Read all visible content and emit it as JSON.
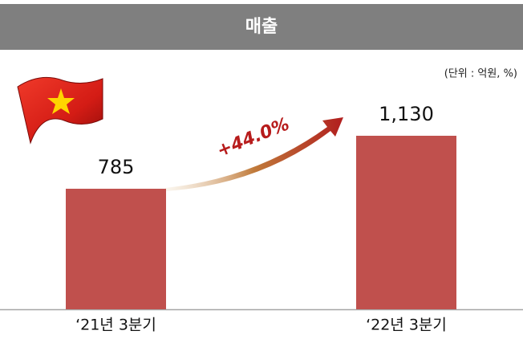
{
  "chart_data": {
    "type": "bar",
    "title": "매출",
    "subtitle": "(단위 : 억원, %)",
    "categories": [
      "‘21년 3분기",
      "‘22년 3분기"
    ],
    "values": [
      785,
      1130
    ],
    "value_labels": [
      "785",
      "1,130"
    ],
    "color": "#c0504d",
    "annotation": "+44.0%"
  }
}
